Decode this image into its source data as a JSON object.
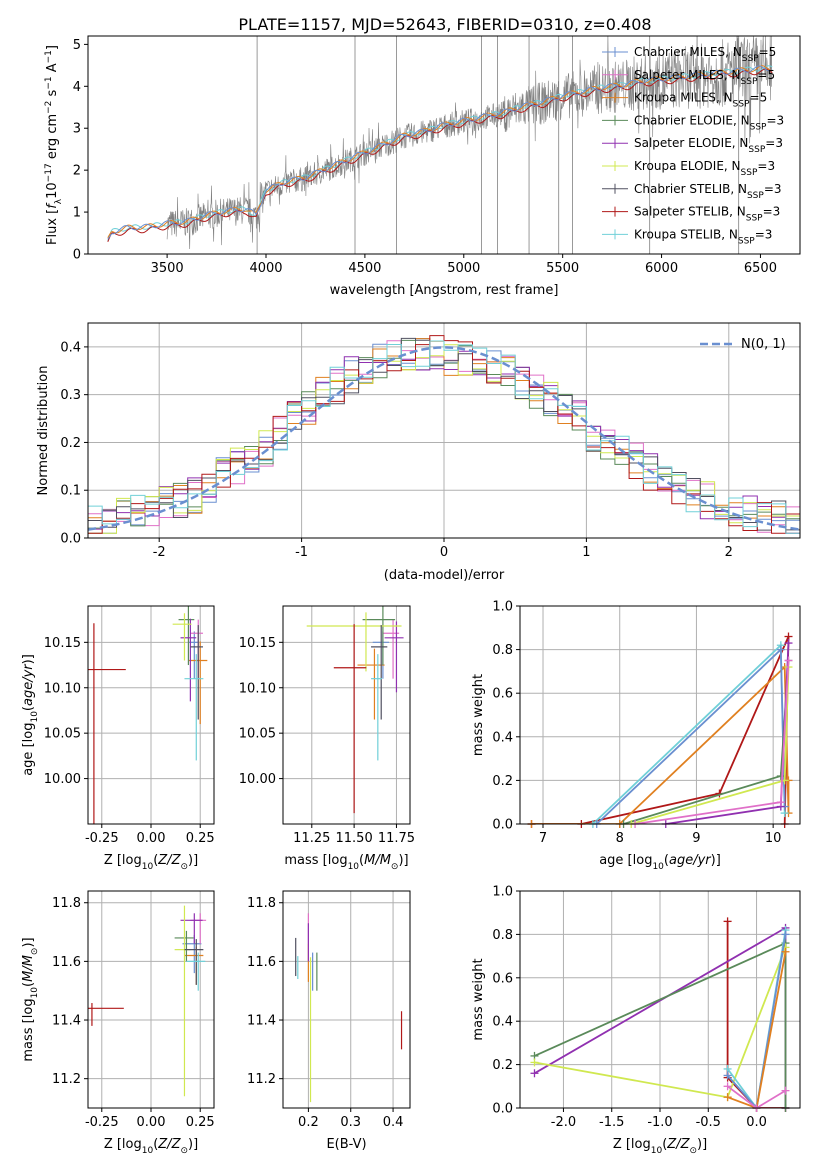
{
  "title": "PLATE=1157, MJD=52643, FIBERID=0310, z=0.408",
  "colors": {
    "Chabrier MILES": "#6a8fd0",
    "Salpeter MILES": "#e070c8",
    "Kroupa MILES": "#e08020",
    "Chabrier ELODIE": "#5a8a5a",
    "Salpeter ELODIE": "#9030b0",
    "Kroupa ELODIE": "#d0e850",
    "Chabrier STELIB": "#505060",
    "Salpeter STELIB": "#b01818",
    "Kroupa STELIB": "#70d0d8",
    "data": "#808080",
    "normal": "#6a8fd0",
    "grid": "#b0b0b0"
  },
  "chart_data": [
    {
      "id": "spectrum",
      "type": "line",
      "xlabel": "wavelength [Angstrom, rest frame]",
      "ylabel": "Flux [f_λ 10^-17 erg cm^-2 s^-1 A^-1]",
      "xlim": [
        3100,
        6700
      ],
      "ylim": [
        0,
        5.2
      ],
      "xticks": [
        3500,
        4000,
        4500,
        5000,
        5500,
        6000,
        6500
      ],
      "yticks": [
        0,
        1,
        2,
        3,
        4,
        5
      ],
      "grid": false,
      "legend_position": "top-right",
      "legend": [
        {
          "name": "Chabrier MILES",
          "nssp": "5"
        },
        {
          "name": "Salpeter MILES",
          "nssp": "5"
        },
        {
          "name": "Kroupa MILES",
          "nssp": "5"
        },
        {
          "name": "Chabrier ELODIE",
          "nssp": "3"
        },
        {
          "name": "Salpeter ELODIE",
          "nssp": "3"
        },
        {
          "name": "Kroupa ELODIE",
          "nssp": "3"
        },
        {
          "name": "Chabrier STELIB",
          "nssp": "3"
        },
        {
          "name": "Salpeter STELIB",
          "nssp": "3"
        },
        {
          "name": "Kroupa STELIB",
          "nssp": "3"
        }
      ],
      "model_curve": {
        "x": [
          3200,
          3220,
          3300,
          3400,
          3500,
          3600,
          3700,
          3800,
          3900,
          3950,
          4000,
          4100,
          4200,
          4300,
          4400,
          4500,
          4600,
          4700,
          4800,
          4900,
          5000,
          5100,
          5200,
          5300,
          5400,
          5500,
          5600,
          5700,
          5800,
          5900,
          6000,
          6100,
          6200,
          6300,
          6400,
          6500,
          6560
        ],
        "y": [
          0.3,
          0.5,
          0.6,
          0.62,
          0.7,
          0.75,
          0.9,
          1.0,
          1.05,
          0.9,
          1.5,
          1.7,
          1.8,
          2.0,
          2.2,
          2.4,
          2.6,
          2.8,
          2.9,
          3.05,
          3.15,
          3.25,
          3.35,
          3.5,
          3.6,
          3.75,
          3.85,
          3.95,
          4.0,
          4.1,
          4.15,
          4.2,
          4.25,
          4.3,
          4.35,
          4.4,
          4.4
        ]
      }
    },
    {
      "id": "residuals",
      "type": "bar",
      "xlabel": "(data-model)/error",
      "ylabel": "Normed distribution",
      "xlim": [
        -2.5,
        2.5
      ],
      "ylim": [
        0,
        0.45
      ],
      "xticks": [
        -2,
        -1,
        0,
        1,
        2
      ],
      "yticks": [
        0.0,
        0.1,
        0.2,
        0.3,
        0.4
      ],
      "grid": true,
      "legend_position": "top-right",
      "legend_label": "N(0, 1)",
      "bin_centers": [
        -2.45,
        -2.35,
        -2.25,
        -2.15,
        -2.05,
        -1.95,
        -1.85,
        -1.75,
        -1.65,
        -1.55,
        -1.45,
        -1.35,
        -1.25,
        -1.15,
        -1.05,
        -0.95,
        -0.85,
        -0.75,
        -0.65,
        -0.55,
        -0.45,
        -0.35,
        -0.25,
        -0.15,
        -0.05,
        0.05,
        0.15,
        0.25,
        0.35,
        0.45,
        0.55,
        0.65,
        0.75,
        0.85,
        0.95,
        1.05,
        1.15,
        1.25,
        1.35,
        1.45,
        1.55,
        1.65,
        1.75,
        1.85,
        1.95,
        2.05,
        2.15,
        2.25,
        2.35,
        2.45
      ],
      "series": [
        {
          "values": [
            0.03,
            0.035,
            0.045,
            0.05,
            0.055,
            0.07,
            0.08,
            0.09,
            0.11,
            0.13,
            0.15,
            0.17,
            0.19,
            0.22,
            0.25,
            0.27,
            0.3,
            0.32,
            0.34,
            0.36,
            0.37,
            0.38,
            0.385,
            0.39,
            0.385,
            0.38,
            0.375,
            0.37,
            0.36,
            0.35,
            0.33,
            0.31,
            0.29,
            0.27,
            0.25,
            0.22,
            0.2,
            0.18,
            0.16,
            0.14,
            0.12,
            0.1,
            0.09,
            0.08,
            0.07,
            0.06,
            0.05,
            0.045,
            0.04,
            0.035
          ]
        }
      ],
      "normal_curve": "N(0,1) dashed"
    },
    {
      "id": "age_vs_Z",
      "type": "scatter",
      "xlabel": "Z [log10(Z/Z☉)]",
      "ylabel": "age [log10(age/yr)]",
      "xlim": [
        -0.32,
        0.32
      ],
      "ylim": [
        9.95,
        10.19
      ],
      "xticks": [
        -0.25,
        0.0,
        0.25
      ],
      "yticks": [
        10.0,
        10.05,
        10.1,
        10.15
      ],
      "points": [
        {
          "series": "Chabrier MILES",
          "x": 0.22,
          "y": 10.15,
          "xerr": 0.03,
          "yerr": 0.04
        },
        {
          "series": "Salpeter MILES",
          "x": 0.24,
          "y": 10.16,
          "xerr": 0.04,
          "yerr": 0.05
        },
        {
          "series": "Kroupa MILES",
          "x": 0.25,
          "y": 10.13,
          "xerr": 0.06,
          "yerr": 0.07
        },
        {
          "series": "Chabrier ELODIE",
          "x": 0.19,
          "y": 10.175,
          "xerr": 0.05,
          "yerr": 0.05
        },
        {
          "series": "Salpeter ELODIE",
          "x": 0.2,
          "y": 10.155,
          "xerr": 0.05,
          "yerr": 0.07
        },
        {
          "series": "Kroupa ELODIE",
          "x": 0.17,
          "y": 10.17,
          "xerr": 0.06,
          "yerr": 0.04
        },
        {
          "series": "Chabrier STELIB",
          "x": 0.24,
          "y": 10.145,
          "xerr": 0.04,
          "yerr": 0.08
        },
        {
          "series": "Salpeter STELIB",
          "x": -0.29,
          "y": 10.12,
          "xerr": 0.27,
          "yerr": 0.17
        },
        {
          "series": "Kroupa STELIB",
          "x": 0.23,
          "y": 10.11,
          "xerr": 0.06,
          "yerr": 0.09
        }
      ]
    },
    {
      "id": "age_vs_mass",
      "type": "scatter",
      "xlabel": "mass [log10(M/M☉)]",
      "ylabel": "",
      "xlim": [
        11.08,
        11.83
      ],
      "ylim": [
        9.95,
        10.19
      ],
      "xticks": [
        11.25,
        11.5,
        11.75
      ],
      "yticks": [
        10.0,
        10.05,
        10.1,
        10.15
      ],
      "points": [
        {
          "series": "Chabrier MILES",
          "x": 11.67,
          "y": 10.15,
          "xerr": 0.06,
          "yerr": 0.04
        },
        {
          "series": "Salpeter MILES",
          "x": 11.73,
          "y": 10.16,
          "xerr": 0.06,
          "yerr": 0.05
        },
        {
          "series": "Kroupa MILES",
          "x": 11.62,
          "y": 10.125,
          "xerr": 0.1,
          "yerr": 0.06
        },
        {
          "series": "Chabrier ELODIE",
          "x": 11.67,
          "y": 10.175,
          "xerr": 0.12,
          "yerr": 0.05
        },
        {
          "series": "Salpeter ELODIE",
          "x": 11.75,
          "y": 10.155,
          "xerr": 0.07,
          "yerr": 0.06
        },
        {
          "series": "Kroupa ELODIE",
          "x": 11.57,
          "y": 10.168,
          "xerr": 0.35,
          "yerr": 0.05
        },
        {
          "series": "Chabrier STELIB",
          "x": 11.66,
          "y": 10.145,
          "xerr": 0.06,
          "yerr": 0.08
        },
        {
          "series": "Salpeter STELIB",
          "x": 11.5,
          "y": 10.122,
          "xerr": 0.12,
          "yerr": 0.16
        },
        {
          "series": "Kroupa STELIB",
          "x": 11.64,
          "y": 10.11,
          "xerr": 0.04,
          "yerr": 0.09
        }
      ]
    },
    {
      "id": "weight_vs_age",
      "type": "line",
      "xlabel": "age [log10(age/yr)]",
      "ylabel": "mass weight",
      "xlim": [
        6.7,
        10.35
      ],
      "ylim": [
        0,
        1.0
      ],
      "xticks": [
        7,
        8,
        9,
        10
      ],
      "yticks": [
        0.0,
        0.2,
        0.4,
        0.6,
        0.8,
        1.0
      ],
      "grid": true,
      "series": [
        {
          "series": "Salpeter STELIB",
          "x": [
            6.85,
            7.5,
            9.3,
            10.2,
            10.15
          ],
          "y": [
            0.0,
            0.0,
            0.14,
            0.86,
            0.0
          ]
        },
        {
          "series": "Kroupa MILES",
          "x": [
            6.85,
            8.0,
            10.15,
            10.2,
            10.2
          ],
          "y": [
            0.0,
            0.0,
            0.72,
            0.05,
            0.2
          ]
        },
        {
          "series": "Kroupa STELIB",
          "x": [
            7.65,
            10.1,
            10.15
          ],
          "y": [
            0.0,
            0.82,
            0.05
          ]
        },
        {
          "series": "Chabrier MILES",
          "x": [
            7.7,
            10.1,
            10.15
          ],
          "y": [
            0.0,
            0.8,
            0.08
          ]
        },
        {
          "series": "Chabrier ELODIE",
          "x": [
            8.05,
            10.1,
            10.2
          ],
          "y": [
            0.0,
            0.22,
            0.75
          ]
        },
        {
          "series": "Salpeter ELODIE",
          "x": [
            8.6,
            10.1,
            10.2
          ],
          "y": [
            0.0,
            0.08,
            0.83
          ]
        },
        {
          "series": "Kroupa ELODIE",
          "x": [
            8.15,
            10.15,
            10.2
          ],
          "y": [
            0.0,
            0.2,
            0.72
          ]
        },
        {
          "series": "Salpeter MILES",
          "x": [
            8.2,
            10.1,
            10.2
          ],
          "y": [
            0.0,
            0.1,
            0.75
          ]
        }
      ]
    },
    {
      "id": "mass_vs_Z",
      "type": "scatter",
      "xlabel": "Z [log10(Z/Z☉)]",
      "ylabel": "mass [log10(M/M☉)]",
      "xlim": [
        -0.32,
        0.32
      ],
      "ylim": [
        11.1,
        11.84
      ],
      "xticks": [
        -0.25,
        0.0,
        0.25
      ],
      "yticks": [
        11.2,
        11.4,
        11.6,
        11.8
      ],
      "points": [
        {
          "series": "Chabrier MILES",
          "x": 0.22,
          "y": 11.66,
          "xerr": 0.06,
          "yerr": 0.1
        },
        {
          "series": "Salpeter MILES",
          "x": 0.25,
          "y": 11.74,
          "xerr": 0.05,
          "yerr": 0.08
        },
        {
          "series": "Kroupa MILES",
          "x": 0.23,
          "y": 11.62,
          "xerr": 0.06,
          "yerr": 0.1
        },
        {
          "series": "Chabrier ELODIE",
          "x": 0.18,
          "y": 11.68,
          "xerr": 0.06,
          "yerr": 0.08
        },
        {
          "series": "Salpeter ELODIE",
          "x": 0.22,
          "y": 11.74,
          "xerr": 0.07,
          "yerr": 0.08
        },
        {
          "series": "Kroupa ELODIE",
          "x": 0.17,
          "y": 11.64,
          "xerr": 0.05,
          "yerr": 0.5
        },
        {
          "series": "Chabrier STELIB",
          "x": 0.23,
          "y": 11.64,
          "xerr": 0.06,
          "yerr": 0.12
        },
        {
          "series": "Salpeter STELIB",
          "x": -0.3,
          "y": 11.44,
          "xerr": 0.27,
          "yerr": 0.06
        },
        {
          "series": "Kroupa STELIB",
          "x": 0.24,
          "y": 11.6,
          "xerr": 0.06,
          "yerr": 0.1
        }
      ]
    },
    {
      "id": "mass_vs_EBV",
      "type": "scatter",
      "xlabel": "E(B-V)",
      "ylabel": "",
      "xlim": [
        0.14,
        0.44
      ],
      "ylim": [
        11.1,
        11.84
      ],
      "xticks": [
        0.2,
        0.3,
        0.4
      ],
      "yticks": [
        11.2,
        11.4,
        11.6,
        11.8
      ],
      "points": [
        {
          "series": "Chabrier MILES",
          "x": 0.21,
          "y": 11.6,
          "xerr": 0,
          "yerr": 0.1
        },
        {
          "series": "Salpeter MILES",
          "x": 0.2,
          "y": 11.74,
          "xerr": 0,
          "yerr": 0.08
        },
        {
          "series": "Kroupa MILES",
          "x": 0.2,
          "y": 11.63,
          "xerr": 0,
          "yerr": 0.1
        },
        {
          "series": "Chabrier ELODIE",
          "x": 0.22,
          "y": 11.6,
          "xerr": 0,
          "yerr": 0.1
        },
        {
          "series": "Salpeter ELODIE",
          "x": 0.2,
          "y": 11.7,
          "xerr": 0,
          "yerr": 0.1
        },
        {
          "series": "Kroupa ELODIE",
          "x": 0.205,
          "y": 11.5,
          "xerr": 0,
          "yerr": 0.38
        },
        {
          "series": "Chabrier STELIB",
          "x": 0.17,
          "y": 11.65,
          "xerr": 0,
          "yerr": 0.1
        },
        {
          "series": "Salpeter STELIB",
          "x": 0.42,
          "y": 11.4,
          "xerr": 0,
          "yerr": 0.1
        },
        {
          "series": "Kroupa STELIB",
          "x": 0.175,
          "y": 11.6,
          "xerr": 0,
          "yerr": 0.06
        }
      ]
    },
    {
      "id": "weight_vs_Z",
      "type": "line",
      "xlabel": "Z [log10(Z/Z☉)]",
      "ylabel": "mass weight",
      "xlim": [
        -2.45,
        0.45
      ],
      "ylim": [
        0,
        1.0
      ],
      "xticks": [
        -2.0,
        -1.5,
        -1.0,
        -0.5,
        0.0
      ],
      "yticks": [
        0.0,
        0.2,
        0.4,
        0.6,
        0.8,
        1.0
      ],
      "grid": true,
      "series": [
        {
          "series": "Salpeter STELIB",
          "x": [
            -0.3,
            -0.3,
            0.0,
            0.3
          ],
          "y": [
            0.86,
            0.14,
            0.0,
            0.0
          ]
        },
        {
          "series": "Salpeter ELODIE",
          "x": [
            -2.3,
            0.3,
            0.3
          ],
          "y": [
            0.16,
            0.83,
            0.0
          ]
        },
        {
          "series": "Chabrier ELODIE",
          "x": [
            -2.3,
            0.3,
            0.3
          ],
          "y": [
            0.24,
            0.76,
            0.0
          ]
        },
        {
          "series": "Kroupa ELODIE",
          "x": [
            -2.3,
            -0.3,
            0.3
          ],
          "y": [
            0.21,
            0.05,
            0.74
          ]
        },
        {
          "series": "Kroupa STELIB",
          "x": [
            -0.3,
            0.0,
            0.3
          ],
          "y": [
            0.18,
            0.0,
            0.82
          ]
        },
        {
          "series": "Chabrier MILES",
          "x": [
            -0.3,
            0.0,
            0.3
          ],
          "y": [
            0.15,
            0.0,
            0.8
          ]
        },
        {
          "series": "Kroupa MILES",
          "x": [
            -0.3,
            0.0,
            0.3
          ],
          "y": [
            0.05,
            0.0,
            0.72
          ]
        },
        {
          "series": "Salpeter MILES",
          "x": [
            -0.3,
            0.0,
            0.3
          ],
          "y": [
            0.1,
            0.0,
            0.08
          ]
        }
      ]
    }
  ]
}
